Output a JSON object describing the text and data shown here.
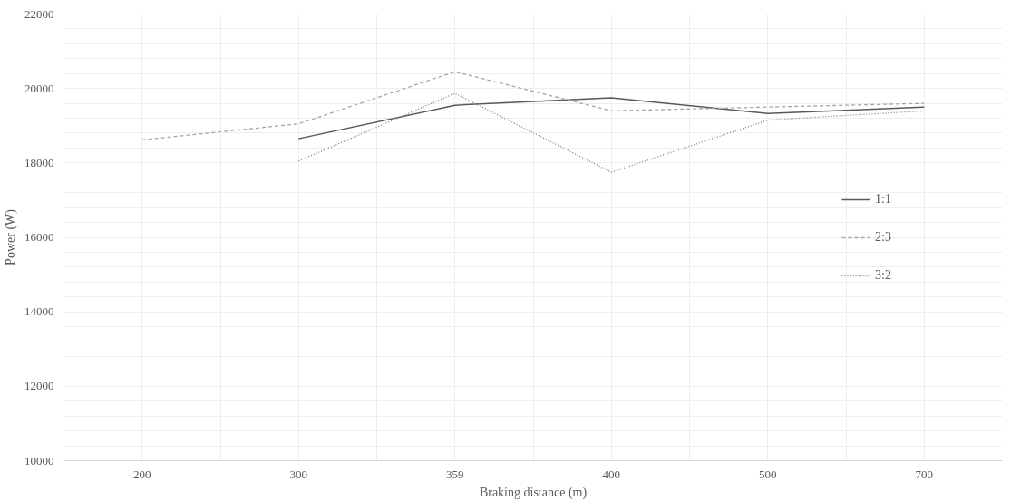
{
  "chart_data": {
    "type": "line",
    "xlabel": "Braking distance (m)",
    "ylabel": "Power (W)",
    "categories": [
      "200",
      "300",
      "359",
      "400",
      "500",
      "700"
    ],
    "series": [
      {
        "name": "1:1",
        "color": "#595959",
        "line_style": "solid",
        "values": [
          null,
          18650,
          19550,
          19750,
          19330,
          19500
        ]
      },
      {
        "name": "2:3",
        "color": "#a6a6a6",
        "line_style": "dashed",
        "values": [
          18620,
          19050,
          20450,
          19400,
          19500,
          19600
        ]
      },
      {
        "name": "3:2",
        "color": "#7f7f7f",
        "line_style": "dotted",
        "values": [
          null,
          18050,
          19870,
          17750,
          19150,
          19400
        ]
      }
    ],
    "ylim": [
      10000,
      22000
    ],
    "yticks": [
      10000,
      12000,
      14000,
      16000,
      18000,
      20000,
      22000
    ],
    "grid": true,
    "legend": "right",
    "marker": "none"
  }
}
